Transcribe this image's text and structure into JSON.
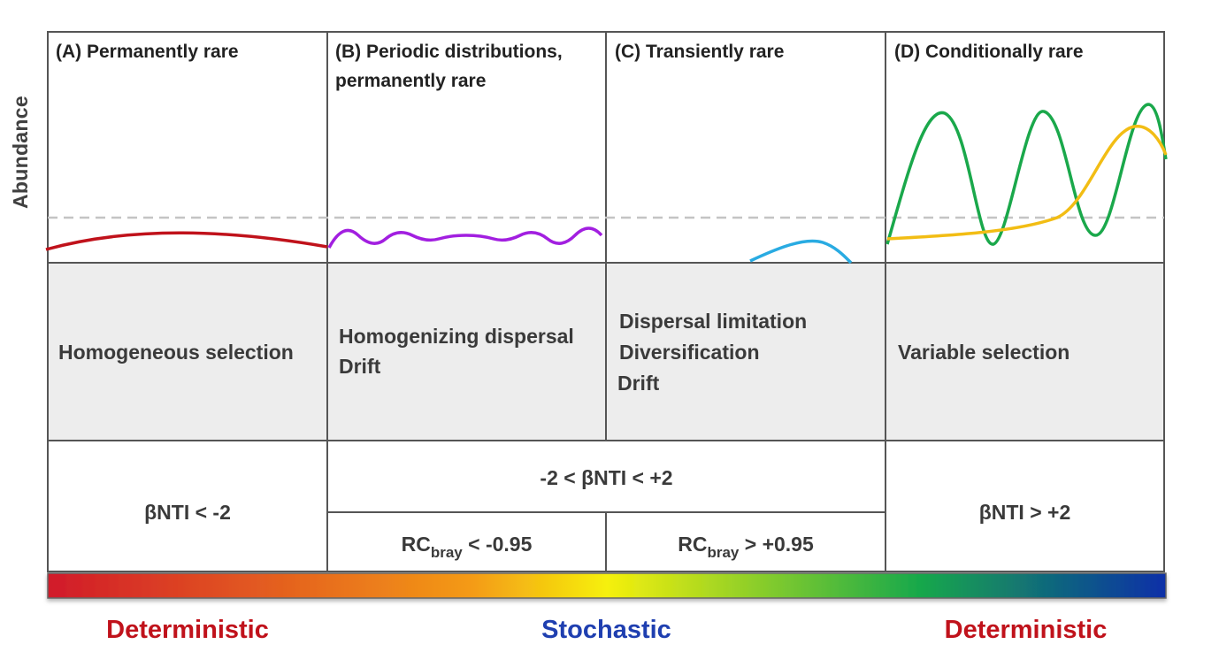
{
  "y_axis_label": "Abundance",
  "panels": [
    {
      "title": "(A) Permanently rare",
      "curve_color": "#c0121b"
    },
    {
      "title_line1": "(B) Periodic distributions,",
      "title_line2": "permanently rare",
      "curve_color": "#a21fe0"
    },
    {
      "title": "(C) Transiently rare",
      "curve_color": "#29abe2"
    },
    {
      "title": "(D) Conditionally rare",
      "curve_colors": [
        "#1aa84b",
        "#f2bd14"
      ]
    }
  ],
  "processes": {
    "a": "Homogeneous selection",
    "b": [
      "Homogenizing dispersal",
      "Drift"
    ],
    "c": [
      "Dispersal limitation",
      "Diversification",
      "Drift"
    ],
    "d": "Variable selection"
  },
  "conditions": {
    "a": "βNTI < -2",
    "bc": "-2 < βNTI < +2",
    "b_main": "RC",
    "b_sub": "bray",
    "b_rest": " < -0.95",
    "c_main": "RC",
    "c_sub": "bray",
    "c_rest": " > +0.95",
    "d": "βNTI > +2"
  },
  "gradient_colors": [
    "#d11a2a",
    "#f49b16",
    "#f6f00c",
    "#17a84b",
    "#0b2fa8"
  ],
  "bottom_labels": [
    {
      "text": "Deterministic",
      "color": "#c0121b"
    },
    {
      "text": "Stochastic",
      "color": "#1f3fb0"
    },
    {
      "text": "Deterministic",
      "color": "#c0121b"
    }
  ]
}
